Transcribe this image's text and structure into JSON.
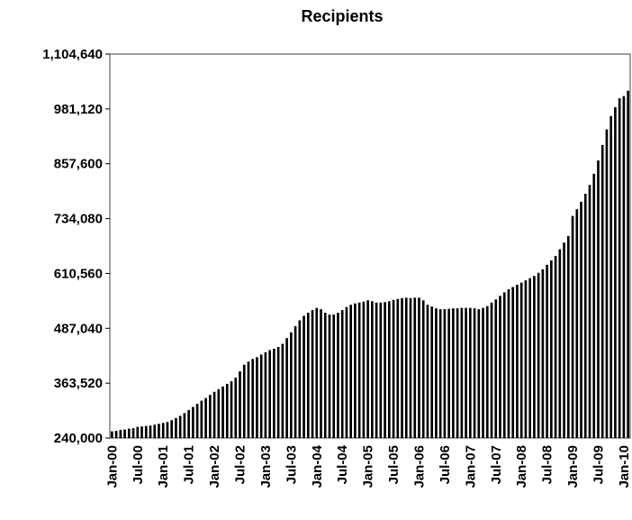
{
  "chart_data": {
    "type": "bar",
    "title": "Recipients",
    "categories": [
      "Jan-00",
      null,
      null,
      null,
      null,
      null,
      "Jul-00",
      null,
      null,
      null,
      null,
      null,
      "Jan-01",
      null,
      null,
      null,
      null,
      null,
      "Jul-01",
      null,
      null,
      null,
      null,
      null,
      "Jan-02",
      null,
      null,
      null,
      null,
      null,
      "Jul-02",
      null,
      null,
      null,
      null,
      null,
      "Jan-03",
      null,
      null,
      null,
      null,
      null,
      "Jul-03",
      null,
      null,
      null,
      null,
      null,
      "Jan-04",
      null,
      null,
      null,
      null,
      null,
      "Jul-04",
      null,
      null,
      null,
      null,
      null,
      "Jan-05",
      null,
      null,
      null,
      null,
      null,
      "Jul-05",
      null,
      null,
      null,
      null,
      null,
      "Jan-06",
      null,
      null,
      null,
      null,
      null,
      "Jul-06",
      null,
      null,
      null,
      null,
      null,
      "Jan-07",
      null,
      null,
      null,
      null,
      null,
      "Jul-07",
      null,
      null,
      null,
      null,
      null,
      "Jan-08",
      null,
      null,
      null,
      null,
      null,
      "Jul-08",
      null,
      null,
      null,
      null,
      null,
      "Jan-09",
      null,
      null,
      null,
      null,
      null,
      "Jul-09",
      null,
      null,
      null,
      null,
      null,
      "Jan-10",
      null
    ],
    "values": [
      255000,
      256000,
      258000,
      259000,
      261000,
      262000,
      265000,
      266000,
      267000,
      268000,
      270000,
      272000,
      274000,
      276000,
      280000,
      285000,
      290000,
      296000,
      303000,
      310000,
      317000,
      324000,
      330000,
      337000,
      344000,
      350000,
      356000,
      362000,
      368000,
      376000,
      390000,
      405000,
      412000,
      418000,
      422000,
      428000,
      433000,
      438000,
      441000,
      445000,
      452000,
      465000,
      478000,
      492000,
      505000,
      515000,
      522000,
      528000,
      533000,
      530000,
      522000,
      518000,
      518000,
      522000,
      528000,
      535000,
      540000,
      543000,
      545000,
      547000,
      550000,
      548000,
      545000,
      545000,
      546000,
      548000,
      551000,
      553000,
      555000,
      556000,
      555000,
      556000,
      556000,
      550000,
      540000,
      536000,
      532000,
      530000,
      530000,
      531000,
      532000,
      532000,
      533000,
      533000,
      533000,
      532000,
      530000,
      533000,
      537000,
      545000,
      552000,
      560000,
      568000,
      575000,
      580000,
      585000,
      590000,
      595000,
      600000,
      605000,
      612000,
      620000,
      630000,
      640000,
      650000,
      665000,
      680000,
      695000,
      740000,
      755000,
      772000,
      790000,
      810000,
      835000,
      865000,
      900000,
      935000,
      965000,
      985000,
      1005000,
      1010000,
      1022000
    ],
    "color": "#000000",
    "ylim": [
      240000,
      1104640
    ],
    "yticks": [
      {
        "value": 240000,
        "label": "240,000"
      },
      {
        "value": 363520,
        "label": "363,520"
      },
      {
        "value": 487040,
        "label": "487,040"
      },
      {
        "value": 610560,
        "label": "610,560"
      },
      {
        "value": 734080,
        "label": "734,080"
      },
      {
        "value": 857600,
        "label": "857,600"
      },
      {
        "value": 981120,
        "label": "981,120"
      },
      {
        "value": 1104640,
        "label": "1,104,640"
      }
    ],
    "grid": false
  }
}
